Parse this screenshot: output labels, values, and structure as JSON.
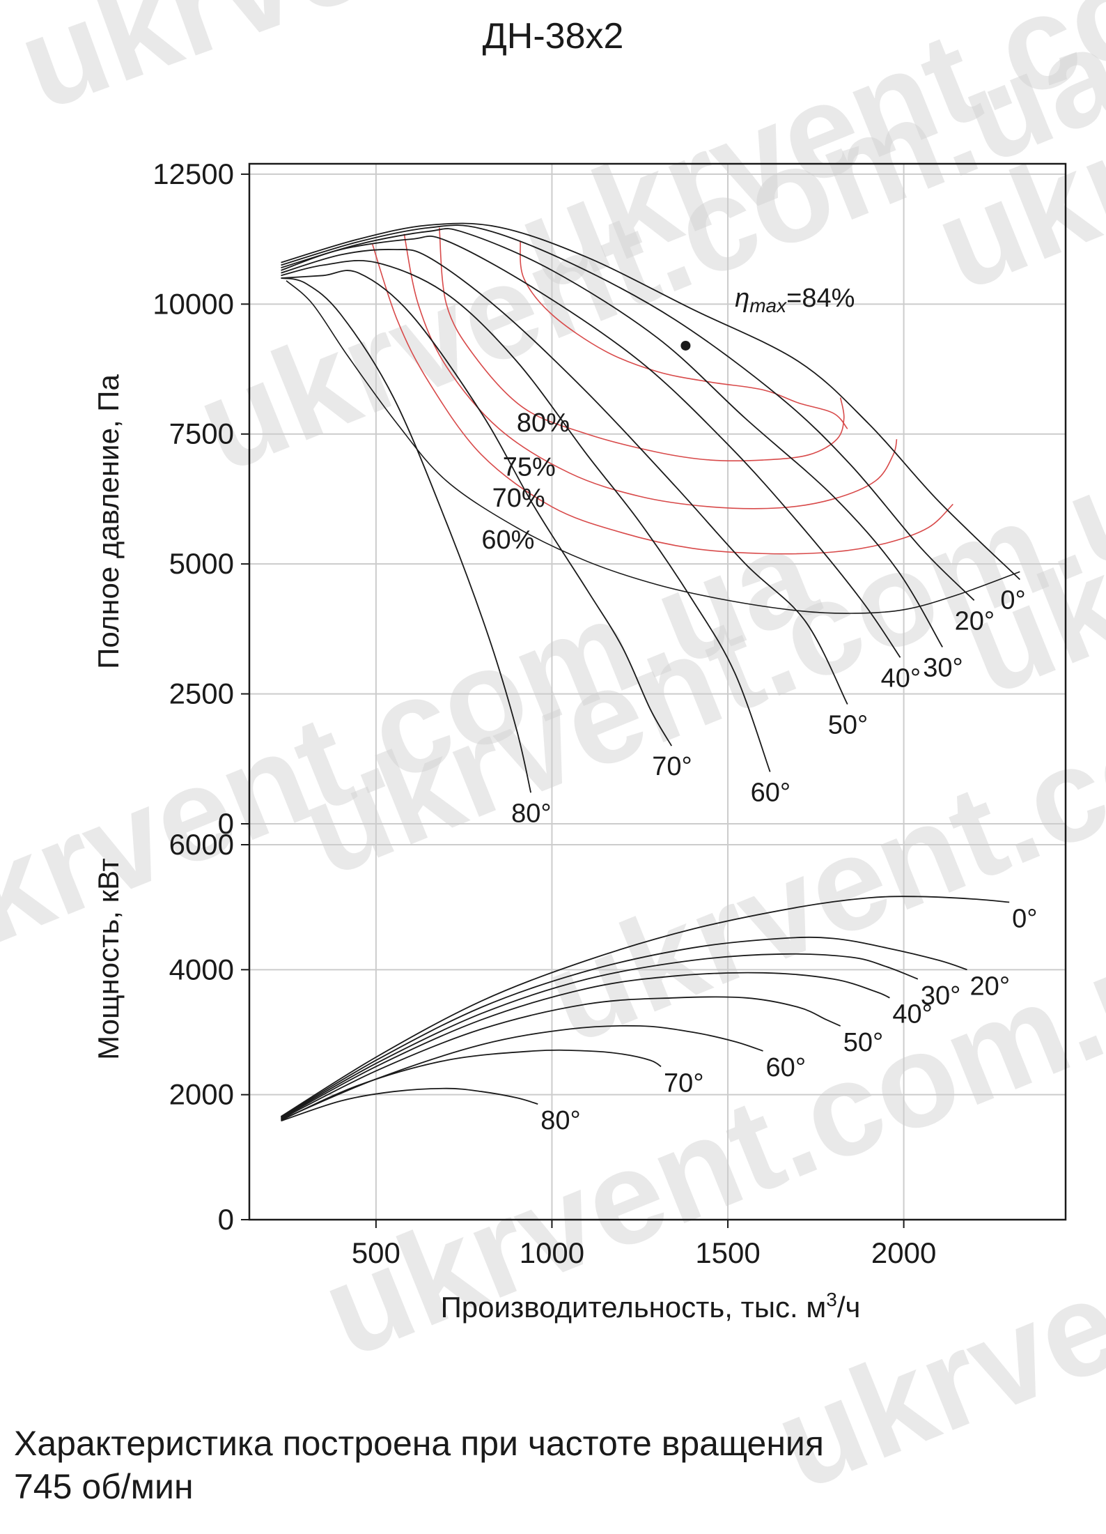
{
  "title": "ДН-38х2",
  "footer": {
    "line1": "Характеристика построена при частоте вращения",
    "line2": "745 об/мин"
  },
  "watermark": "ukrvent.com.ua",
  "colors": {
    "curve": "#1a1a1a",
    "efficiency": "#d84a4a",
    "grid": "#cccccc"
  },
  "chart_data": [
    {
      "type": "line",
      "id": "pressure",
      "ylabel": "Полное давление, Па",
      "xlim": [
        140,
        2460
      ],
      "ylim": [
        0,
        12700
      ],
      "yticks": [
        0,
        2500,
        5000,
        7500,
        10000,
        12500
      ],
      "grid": true,
      "series": [
        {
          "name": "0°",
          "label": "0°",
          "points": [
            [
              230,
              10800
            ],
            [
              450,
              11250
            ],
            [
              650,
              11520
            ],
            [
              850,
              11480
            ],
            [
              1100,
              10900
            ],
            [
              1400,
              9900
            ],
            [
              1700,
              8900
            ],
            [
              1900,
              7700
            ],
            [
              2100,
              6200
            ],
            [
              2330,
              4700
            ]
          ]
        },
        {
          "name": "20°",
          "label": "20°",
          "points": [
            [
              230,
              10750
            ],
            [
              450,
              11200
            ],
            [
              650,
              11470
            ],
            [
              800,
              11450
            ],
            [
              1050,
              10800
            ],
            [
              1350,
              9700
            ],
            [
              1650,
              8200
            ],
            [
              1850,
              6900
            ],
            [
              2050,
              5300
            ],
            [
              2200,
              4300
            ]
          ]
        },
        {
          "name": "30°",
          "label": "30°",
          "points": [
            [
              230,
              10700
            ],
            [
              450,
              11150
            ],
            [
              650,
              11400
            ],
            [
              750,
              11380
            ],
            [
              1000,
              10650
            ],
            [
              1300,
              9350
            ],
            [
              1550,
              7800
            ],
            [
              1800,
              6300
            ],
            [
              1980,
              4900
            ],
            [
              2110,
              3400
            ]
          ]
        },
        {
          "name": "40°",
          "label": "40°",
          "points": [
            [
              230,
              10650
            ],
            [
              400,
              11050
            ],
            [
              600,
              11250
            ],
            [
              700,
              11220
            ],
            [
              950,
              10300
            ],
            [
              1250,
              8900
            ],
            [
              1500,
              7300
            ],
            [
              1700,
              5800
            ],
            [
              1880,
              4300
            ],
            [
              1990,
              3200
            ]
          ]
        },
        {
          "name": "50°",
          "label": "50°",
          "points": [
            [
              230,
              10600
            ],
            [
              400,
              10950
            ],
            [
              550,
              11050
            ],
            [
              650,
              10900
            ],
            [
              850,
              9900
            ],
            [
              1100,
              8300
            ],
            [
              1350,
              6500
            ],
            [
              1550,
              5000
            ],
            [
              1720,
              3900
            ],
            [
              1840,
              2300
            ]
          ]
        },
        {
          "name": "60°",
          "label": "60°",
          "points": [
            [
              230,
              10550
            ],
            [
              350,
              10750
            ],
            [
              500,
              10800
            ],
            [
              700,
              10200
            ],
            [
              900,
              8900
            ],
            [
              1100,
              7100
            ],
            [
              1250,
              5800
            ],
            [
              1400,
              4300
            ],
            [
              1520,
              2900
            ],
            [
              1620,
              1000
            ]
          ]
        },
        {
          "name": "70°",
          "label": "70°",
          "points": [
            [
              230,
              10500
            ],
            [
              350,
              10550
            ],
            [
              450,
              10600
            ],
            [
              600,
              9800
            ],
            [
              800,
              7900
            ],
            [
              950,
              6100
            ],
            [
              1100,
              4500
            ],
            [
              1200,
              3400
            ],
            [
              1280,
              2200
            ],
            [
              1340,
              1500
            ]
          ]
        },
        {
          "name": "80°",
          "label": "80°",
          "points": [
            [
              230,
              10500
            ],
            [
              300,
              10400
            ],
            [
              400,
              9800
            ],
            [
              550,
              8200
            ],
            [
              700,
              5800
            ],
            [
              820,
              3600
            ],
            [
              900,
              1800
            ],
            [
              940,
              600
            ]
          ]
        }
      ],
      "efficiency_curves": [
        {
          "label": "60%",
          "color": "#1a1a1a",
          "points": [
            [
              245,
              10450
            ],
            [
              320,
              10000
            ],
            [
              420,
              9000
            ],
            [
              560,
              7700
            ],
            [
              700,
              6600
            ],
            [
              900,
              5700
            ],
            [
              1100,
              5050
            ],
            [
              1300,
              4600
            ],
            [
              1500,
              4300
            ],
            [
              1700,
              4100
            ],
            [
              1850,
              4050
            ],
            [
              2000,
              4120
            ],
            [
              2150,
              4400
            ],
            [
              2330,
              4850
            ]
          ]
        },
        {
          "label": "70%",
          "color": "#d84a4a",
          "points": [
            [
              490,
              11150
            ],
            [
              560,
              9700
            ],
            [
              650,
              8500
            ],
            [
              800,
              7100
            ],
            [
              1000,
              6100
            ],
            [
              1200,
              5600
            ],
            [
              1400,
              5300
            ],
            [
              1600,
              5200
            ],
            [
              1800,
              5230
            ],
            [
              1950,
              5400
            ],
            [
              2070,
              5700
            ],
            [
              2140,
              6150
            ]
          ]
        },
        {
          "label": "75%",
          "color": "#d84a4a",
          "points": [
            [
              580,
              11350
            ],
            [
              620,
              10000
            ],
            [
              700,
              8800
            ],
            [
              850,
              7600
            ],
            [
              1050,
              6750
            ],
            [
              1250,
              6300
            ],
            [
              1450,
              6100
            ],
            [
              1650,
              6080
            ],
            [
              1800,
              6250
            ],
            [
              1920,
              6600
            ],
            [
              1970,
              7100
            ],
            [
              1980,
              7400
            ]
          ]
        },
        {
          "label": "80%",
          "color": "#d84a4a",
          "points": [
            [
              680,
              11470
            ],
            [
              700,
              10000
            ],
            [
              780,
              9000
            ],
            [
              920,
              8000
            ],
            [
              1100,
              7500
            ],
            [
              1300,
              7150
            ],
            [
              1450,
              7000
            ],
            [
              1600,
              7000
            ],
            [
              1730,
              7100
            ],
            [
              1810,
              7400
            ],
            [
              1830,
              7800
            ],
            [
              1820,
              8200
            ]
          ]
        },
        {
          "label": "",
          "color": "#d84a4a",
          "points": [
            [
              910,
              11200
            ],
            [
              920,
              10500
            ],
            [
              1000,
              9800
            ],
            [
              1150,
              9100
            ],
            [
              1300,
              8700
            ],
            [
              1450,
              8500
            ],
            [
              1600,
              8350
            ],
            [
              1700,
              8100
            ],
            [
              1800,
              7900
            ],
            [
              1840,
              7600
            ]
          ]
        }
      ],
      "max_point": {
        "x": 1380,
        "y": 9200
      },
      "max_label": {
        "eta": "η",
        "sub": "max",
        "rest": "=84%"
      }
    },
    {
      "type": "line",
      "id": "power",
      "ylabel": "Мощность, кВт",
      "xlabel": "Производительность, тыс. м",
      "xlabel_sup": "3",
      "xlabel_tail": "/ч",
      "xlim": [
        140,
        2460
      ],
      "ylim": [
        0,
        6000
      ],
      "xticks": [
        500,
        1000,
        1500,
        2000
      ],
      "yticks": [
        0,
        2000,
        4000,
        6000
      ],
      "grid": true,
      "series": [
        {
          "name": "0°",
          "label": "0°",
          "points": [
            [
              230,
              1650
            ],
            [
              500,
              2600
            ],
            [
              800,
              3500
            ],
            [
              1100,
              4150
            ],
            [
              1400,
              4650
            ],
            [
              1700,
              5000
            ],
            [
              1900,
              5150
            ],
            [
              2050,
              5170
            ],
            [
              2200,
              5130
            ],
            [
              2300,
              5080
            ]
          ]
        },
        {
          "name": "20°",
          "label": "20°",
          "points": [
            [
              230,
              1640
            ],
            [
              500,
              2550
            ],
            [
              800,
              3400
            ],
            [
              1100,
              3980
            ],
            [
              1400,
              4350
            ],
            [
              1650,
              4500
            ],
            [
              1800,
              4500
            ],
            [
              1950,
              4350
            ],
            [
              2100,
              4150
            ],
            [
              2180,
              4000
            ]
          ]
        },
        {
          "name": "30°",
          "label": "30°",
          "points": [
            [
              230,
              1630
            ],
            [
              500,
              2500
            ],
            [
              800,
              3300
            ],
            [
              1100,
              3850
            ],
            [
              1400,
              4150
            ],
            [
              1650,
              4250
            ],
            [
              1850,
              4200
            ],
            [
              1950,
              4050
            ],
            [
              2040,
              3850
            ]
          ]
        },
        {
          "name": "40°",
          "label": "40°",
          "points": [
            [
              230,
              1620
            ],
            [
              500,
              2450
            ],
            [
              800,
              3200
            ],
            [
              1100,
              3700
            ],
            [
              1350,
              3900
            ],
            [
              1600,
              3950
            ],
            [
              1800,
              3850
            ],
            [
              1920,
              3650
            ],
            [
              1960,
              3550
            ]
          ]
        },
        {
          "name": "50°",
          "label": "50°",
          "points": [
            [
              230,
              1610
            ],
            [
              500,
              2380
            ],
            [
              800,
              3050
            ],
            [
              1100,
              3450
            ],
            [
              1350,
              3550
            ],
            [
              1550,
              3550
            ],
            [
              1700,
              3400
            ],
            [
              1780,
              3200
            ],
            [
              1820,
              3100
            ]
          ]
        },
        {
          "name": "60°",
          "label": "60°",
          "points": [
            [
              230,
              1600
            ],
            [
              500,
              2250
            ],
            [
              800,
              2800
            ],
            [
              1050,
              3050
            ],
            [
              1250,
              3100
            ],
            [
              1400,
              3000
            ],
            [
              1520,
              2850
            ],
            [
              1600,
              2700
            ]
          ]
        },
        {
          "name": "70°",
          "label": "70°",
          "points": [
            [
              230,
              1590
            ],
            [
              450,
              2150
            ],
            [
              700,
              2550
            ],
            [
              950,
              2700
            ],
            [
              1100,
              2700
            ],
            [
              1200,
              2650
            ],
            [
              1280,
              2550
            ],
            [
              1310,
              2450
            ]
          ]
        },
        {
          "name": "80°",
          "label": "80°",
          "points": [
            [
              230,
              1580
            ],
            [
              400,
              1900
            ],
            [
              550,
              2050
            ],
            [
              700,
              2100
            ],
            [
              800,
              2050
            ],
            [
              900,
              1950
            ],
            [
              960,
              1850
            ]
          ]
        }
      ]
    }
  ]
}
